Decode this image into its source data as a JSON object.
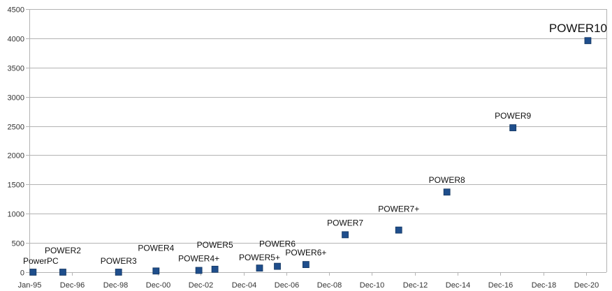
{
  "chart_data": {
    "type": "scatter",
    "title": "",
    "xlabel": "",
    "ylabel": "",
    "ylim": [
      0,
      4500
    ],
    "xlim": [
      "1995-01",
      "2021-12"
    ],
    "grid": true,
    "legend": "none",
    "y_ticks": [
      "0",
      "500",
      "1000",
      "1500",
      "2000",
      "2500",
      "3000",
      "3500",
      "4000",
      "4500"
    ],
    "x_ticks": [
      "Jan-95",
      "Dec-96",
      "Dec-98",
      "Dec-00",
      "Dec-02",
      "Dec-04",
      "Dec-06",
      "Dec-08",
      "Dec-10",
      "Dec-12",
      "Dec-14",
      "Dec-16",
      "Dec-18",
      "Dec-20"
    ],
    "marker_color": "#1f4e8c",
    "points": [
      {
        "label": "PowerPC",
        "date": "1995-03",
        "y": 0
      },
      {
        "label": "POWER2",
        "date": "1996-07",
        "y": 0
      },
      {
        "label": "POWER3",
        "date": "1999-02",
        "y": 0
      },
      {
        "label": "POWER4",
        "date": "2000-11",
        "y": 20
      },
      {
        "label": "POWER4+",
        "date": "2002-11",
        "y": 30
      },
      {
        "label": "POWER5",
        "date": "2003-08",
        "y": 50
      },
      {
        "label": "POWER5+",
        "date": "2005-09",
        "y": 70
      },
      {
        "label": "POWER6",
        "date": "2006-07",
        "y": 100
      },
      {
        "label": "POWER6+",
        "date": "2007-11",
        "y": 130
      },
      {
        "label": "POWER7",
        "date": "2009-09",
        "y": 640
      },
      {
        "label": "POWER7+",
        "date": "2012-03",
        "y": 720
      },
      {
        "label": "POWER8",
        "date": "2014-06",
        "y": 1370
      },
      {
        "label": "POWER9",
        "date": "2017-07",
        "y": 2470
      },
      {
        "label": "POWER10",
        "date": "2021-01",
        "y": 3960
      }
    ]
  }
}
